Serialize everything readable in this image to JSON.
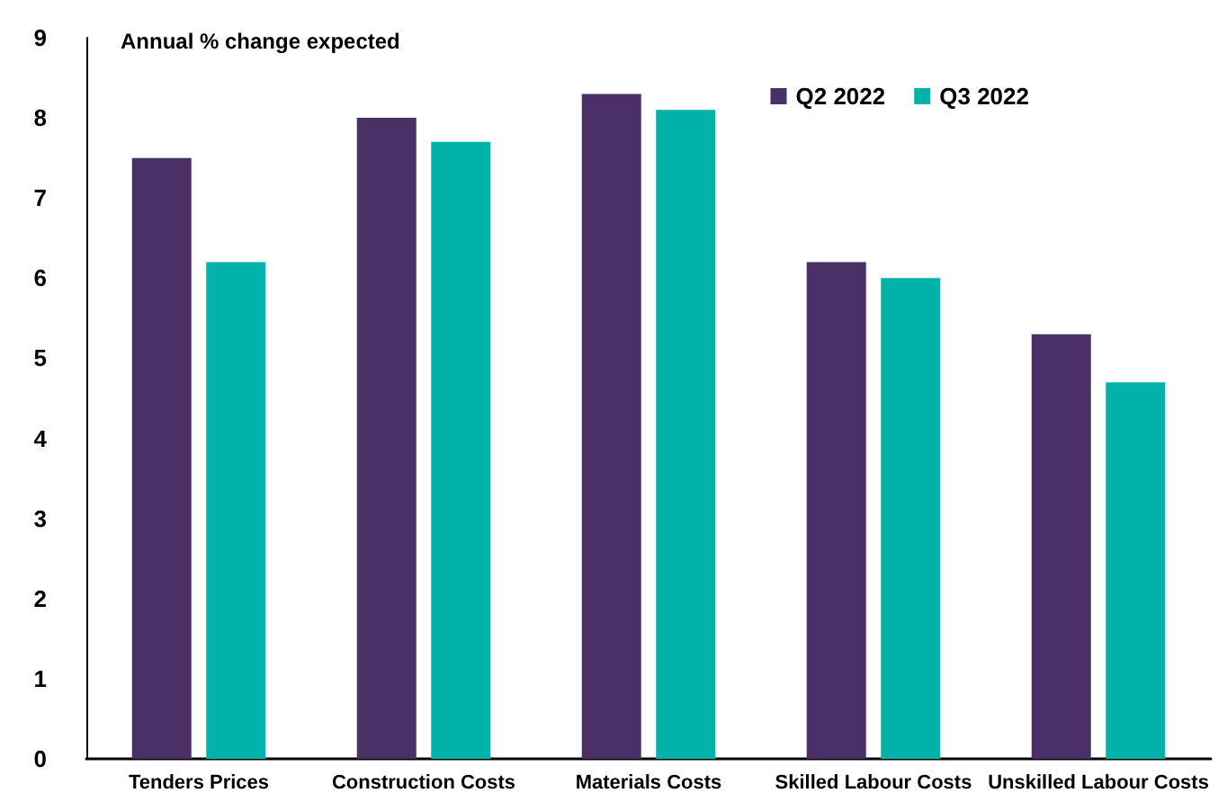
{
  "chart_data": {
    "type": "bar",
    "title": "Annual % change expected",
    "categories": [
      "Tenders Prices",
      "Construction Costs",
      "Materials Costs",
      "Skilled Labour Costs",
      "Unskilled Labour Costs"
    ],
    "series": [
      {
        "name": "Q2 2022",
        "color": "#4b3068",
        "values": [
          7.5,
          8.0,
          8.3,
          6.2,
          5.3
        ]
      },
      {
        "name": "Q3 2022",
        "color": "#00b2a9",
        "values": [
          6.2,
          7.7,
          8.1,
          6.0,
          4.7
        ]
      }
    ],
    "ylim": [
      0,
      9
    ],
    "yticks": [
      0,
      1,
      2,
      3,
      4,
      5,
      6,
      7,
      8,
      9
    ],
    "grid": false,
    "legend": "top right"
  }
}
